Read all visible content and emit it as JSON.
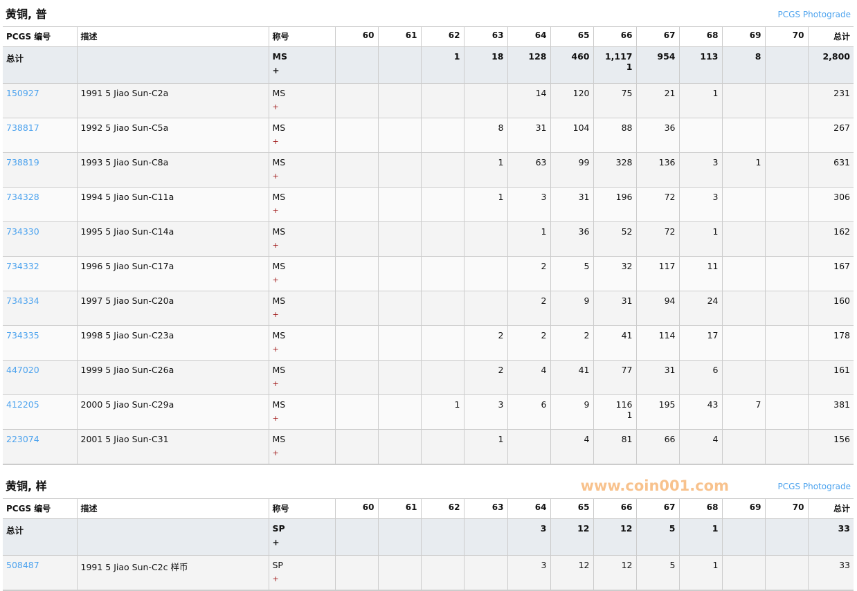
{
  "headers": {
    "id": "PCGS 编号",
    "desc": "描述",
    "desig": "称号",
    "grades": [
      "60",
      "61",
      "62",
      "63",
      "64",
      "65",
      "66",
      "67",
      "68",
      "69",
      "70"
    ],
    "total": "总计"
  },
  "sections": [
    {
      "title": "黄铜, 普",
      "link": "PCGS Photograde",
      "total_row": {
        "label": "总计",
        "desig": "MS",
        "plus": "+",
        "cells": [
          "",
          "",
          "1",
          "18",
          "128",
          "460",
          "1,117\n1",
          "954",
          "113",
          "8",
          "",
          "2,800"
        ]
      },
      "rows": [
        {
          "id": "150927",
          "desc": "1991 5 Jiao Sun-C2a",
          "desig": "MS",
          "plus": "+",
          "cells": [
            "",
            "",
            "",
            "",
            "14",
            "120",
            "75",
            "21",
            "1",
            "",
            "",
            "231"
          ]
        },
        {
          "id": "738817",
          "desc": "1992 5 Jiao Sun-C5a",
          "desig": "MS",
          "plus": "+",
          "cells": [
            "",
            "",
            "",
            "8",
            "31",
            "104",
            "88",
            "36",
            "",
            "",
            "",
            "267"
          ]
        },
        {
          "id": "738819",
          "desc": "1993 5 Jiao Sun-C8a",
          "desig": "MS",
          "plus": "+",
          "cells": [
            "",
            "",
            "",
            "1",
            "63",
            "99",
            "328",
            "136",
            "3",
            "1",
            "",
            "631"
          ]
        },
        {
          "id": "734328",
          "desc": "1994 5 Jiao Sun-C11a",
          "desig": "MS",
          "plus": "+",
          "cells": [
            "",
            "",
            "",
            "1",
            "3",
            "31",
            "196",
            "72",
            "3",
            "",
            "",
            "306"
          ]
        },
        {
          "id": "734330",
          "desc": "1995 5 Jiao Sun-C14a",
          "desig": "MS",
          "plus": "+",
          "cells": [
            "",
            "",
            "",
            "",
            "1",
            "36",
            "52",
            "72",
            "1",
            "",
            "",
            "162"
          ]
        },
        {
          "id": "734332",
          "desc": "1996 5 Jiao Sun-C17a",
          "desig": "MS",
          "plus": "+",
          "cells": [
            "",
            "",
            "",
            "",
            "2",
            "5",
            "32",
            "117",
            "11",
            "",
            "",
            "167"
          ]
        },
        {
          "id": "734334",
          "desc": "1997 5 Jiao Sun-C20a",
          "desig": "MS",
          "plus": "+",
          "cells": [
            "",
            "",
            "",
            "",
            "2",
            "9",
            "31",
            "94",
            "24",
            "",
            "",
            "160"
          ]
        },
        {
          "id": "734335",
          "desc": "1998 5 Jiao Sun-C23a",
          "desig": "MS",
          "plus": "+",
          "cells": [
            "",
            "",
            "",
            "2",
            "2",
            "2",
            "41",
            "114",
            "17",
            "",
            "",
            "178"
          ]
        },
        {
          "id": "447020",
          "desc": "1999 5 Jiao Sun-C26a",
          "desig": "MS",
          "plus": "+",
          "cells": [
            "",
            "",
            "",
            "2",
            "4",
            "41",
            "77",
            "31",
            "6",
            "",
            "",
            "161"
          ]
        },
        {
          "id": "412205",
          "desc": "2000 5 Jiao Sun-C29a",
          "desig": "MS",
          "plus": "+",
          "cells": [
            "",
            "",
            "1",
            "3",
            "6",
            "9",
            "116\n1",
            "195",
            "43",
            "7",
            "",
            "381"
          ]
        },
        {
          "id": "223074",
          "desc": "2001 5 Jiao Sun-C31",
          "desig": "MS",
          "plus": "+",
          "cells": [
            "",
            "",
            "",
            "1",
            "",
            "4",
            "81",
            "66",
            "4",
            "",
            "",
            "156"
          ]
        }
      ]
    },
    {
      "title": "黄铜, 样",
      "link": "PCGS Photograde",
      "total_row": {
        "label": "总计",
        "desig": "SP",
        "plus": "+",
        "cells": [
          "",
          "",
          "",
          "",
          "3",
          "12",
          "12",
          "5",
          "1",
          "",
          "",
          "33"
        ]
      },
      "rows": [
        {
          "id": "508487",
          "desc": "1991 5 Jiao Sun-C2c 样币",
          "desig": "SP",
          "plus": "+",
          "cells": [
            "",
            "",
            "",
            "",
            "3",
            "12",
            "12",
            "5",
            "1",
            "",
            "",
            "33"
          ]
        }
      ]
    }
  ],
  "watermark": "www.coin001.com",
  "colors": {
    "link": "#4da3ee",
    "total_bg": "#e8ecf0",
    "plus": "#a01818"
  }
}
